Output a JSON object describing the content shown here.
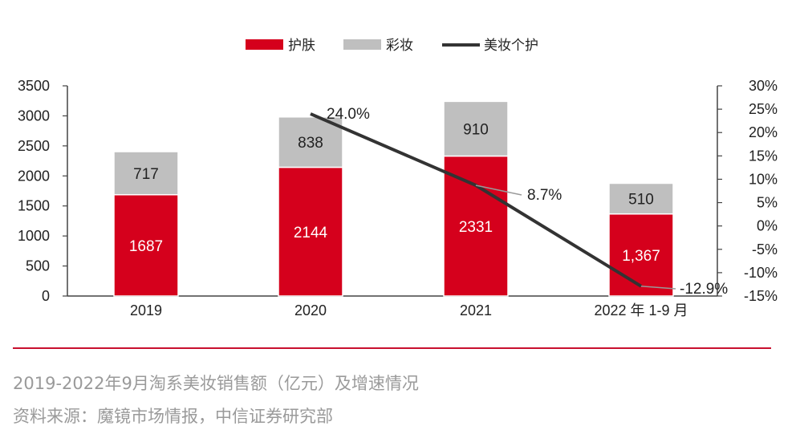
{
  "chart_data": {
    "type": "bar",
    "stacked": true,
    "categories": [
      "2019",
      "2020",
      "2021",
      "2022 年 1-9 月"
    ],
    "series": [
      {
        "name": "护肤",
        "type": "bar",
        "axis": "left",
        "color": "#d5001c",
        "values": [
          1687,
          2144,
          2331,
          1367
        ],
        "value_labels": [
          "1687",
          "2144",
          "2331",
          "1,367"
        ]
      },
      {
        "name": "彩妆",
        "type": "bar",
        "axis": "left",
        "color": "#bfbfbf",
        "values": [
          717,
          838,
          910,
          510
        ],
        "value_labels": [
          "717",
          "838",
          "910",
          "510"
        ]
      },
      {
        "name": "美妆个护",
        "type": "line",
        "axis": "right",
        "color": "#333333",
        "values": [
          null,
          24.0,
          8.7,
          -12.9
        ],
        "value_labels": [
          "",
          "24.0%",
          "8.7%",
          "-12.9%"
        ]
      }
    ],
    "y_left": {
      "ylim": [
        0,
        3500
      ],
      "ticks": [
        0,
        500,
        1000,
        1500,
        2000,
        2500,
        3000,
        3500
      ],
      "tick_labels": [
        "0",
        "500",
        "1000",
        "1500",
        "2000",
        "2500",
        "3000",
        "3500"
      ]
    },
    "y_right": {
      "ylim": [
        -15,
        30
      ],
      "ticks": [
        -15,
        -10,
        -5,
        0,
        5,
        10,
        15,
        20,
        25,
        30
      ],
      "tick_labels": [
        "-15%",
        "-10%",
        "-5%",
        "0%",
        "5%",
        "10%",
        "15%",
        "20%",
        "25%",
        "30%"
      ]
    },
    "legend_position": "top",
    "grid": false
  },
  "caption": {
    "title": "2019-2022年9月淘系美妆销售额（亿元）及增速情况",
    "source": "资料来源：魔镜市场情报，中信证券研究部"
  }
}
